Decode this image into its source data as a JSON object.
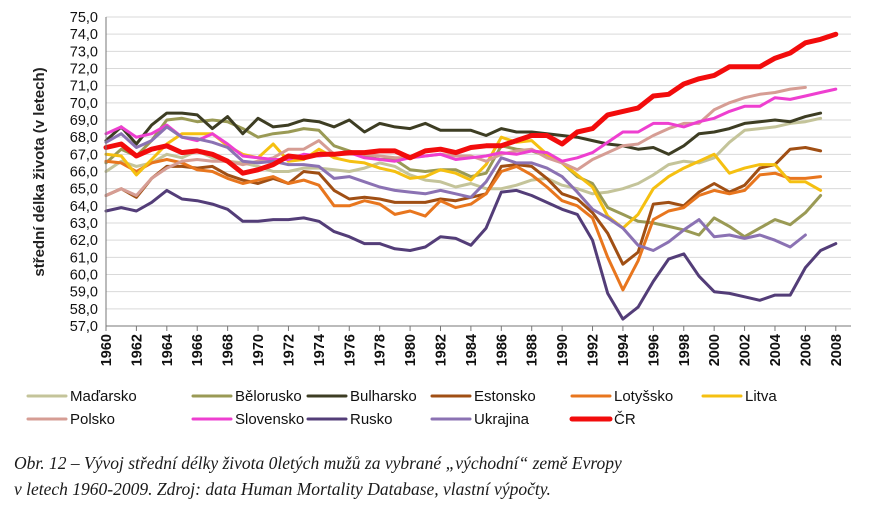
{
  "chart_data": {
    "type": "line",
    "title": "",
    "xlabel": "",
    "ylabel": "střední délka života (v letech)",
    "xlim": [
      1960,
      2009
    ],
    "ylim": [
      57.0,
      75.0
    ],
    "ytick_step": 1,
    "xticks": [
      1960,
      1962,
      1964,
      1966,
      1968,
      1970,
      1972,
      1974,
      1976,
      1978,
      1980,
      1982,
      1984,
      1986,
      1988,
      1990,
      1992,
      1994,
      1996,
      1998,
      2000,
      2002,
      2004,
      2006,
      2008
    ],
    "ytick_labels": [
      "57,0",
      "58,0",
      "59,0",
      "60,0",
      "61,0",
      "62,0",
      "63,0",
      "64,0",
      "65,0",
      "66,0",
      "67,0",
      "68,0",
      "69,0",
      "70,0",
      "71,0",
      "72,0",
      "73,0",
      "74,0",
      "75,0"
    ],
    "grid": "horizontal",
    "legend_position": "bottom",
    "series": [
      {
        "name": "Maďarsko",
        "color": "#c4c49a",
        "start": 1960,
        "values": [
          66.0,
          66.6,
          66.3,
          66.5,
          67.0,
          66.8,
          67.2,
          66.8,
          66.6,
          66.5,
          66.3,
          66.0,
          66.0,
          66.2,
          66.2,
          66.1,
          66.0,
          66.2,
          66.5,
          66.3,
          65.8,
          65.5,
          65.4,
          65.1,
          65.3,
          65.0,
          65.0,
          65.2,
          65.5,
          65.6,
          65.2,
          65.0,
          64.7,
          64.8,
          65.0,
          65.3,
          65.8,
          66.4,
          66.6,
          66.5,
          66.8,
          67.7,
          68.4,
          68.5,
          68.6,
          68.8,
          68.9,
          69.1
        ]
      },
      {
        "name": "Bělorusko",
        "color": "#9a9a55",
        "start": 1960,
        "values": [
          66.5,
          67.3,
          66.9,
          67.8,
          69.0,
          69.1,
          68.9,
          69.0,
          68.9,
          68.5,
          68.0,
          68.2,
          68.3,
          68.5,
          68.4,
          67.5,
          67.2,
          66.9,
          66.7,
          66.7,
          66.1,
          66.0,
          66.1,
          66.1,
          65.7,
          65.9,
          67.5,
          67.3,
          67.2,
          66.9,
          66.5,
          65.7,
          65.3,
          63.9,
          63.5,
          63.1,
          63.0,
          62.8,
          62.6,
          62.3,
          63.3,
          62.8,
          62.2,
          62.7,
          63.2,
          62.9,
          63.6,
          64.6
        ]
      },
      {
        "name": "Bulharsko",
        "color": "#3d3d23",
        "start": 1960,
        "values": [
          67.8,
          68.6,
          67.6,
          68.7,
          69.4,
          69.4,
          69.3,
          68.5,
          69.2,
          68.2,
          69.1,
          68.6,
          68.7,
          69.0,
          68.9,
          68.6,
          69.0,
          68.3,
          68.8,
          68.6,
          68.5,
          68.8,
          68.4,
          68.4,
          68.4,
          68.1,
          68.5,
          68.3,
          68.3,
          68.2,
          68.1,
          68.0,
          67.8,
          67.6,
          67.5,
          67.3,
          67.4,
          67.0,
          67.5,
          68.2,
          68.3,
          68.5,
          68.8,
          68.9,
          69.0,
          68.9,
          69.2,
          69.4
        ]
      },
      {
        "name": "Estonsko",
        "color": "#a04f14",
        "start": 1960,
        "values": [
          64.6,
          65.0,
          64.5,
          65.6,
          66.3,
          66.3,
          66.2,
          66.3,
          65.8,
          65.5,
          65.3,
          65.6,
          65.3,
          66.0,
          65.9,
          64.9,
          64.4,
          64.5,
          64.4,
          64.2,
          64.2,
          64.2,
          64.4,
          64.3,
          64.5,
          64.7,
          66.3,
          66.4,
          66.3,
          65.6,
          64.7,
          64.4,
          63.6,
          62.4,
          60.6,
          61.3,
          64.1,
          64.2,
          64.0,
          64.8,
          65.3,
          64.8,
          65.2,
          66.2,
          66.4,
          67.3,
          67.4,
          67.2
        ]
      },
      {
        "name": "Lotyšsko",
        "color": "#e8761e",
        "start": 1960,
        "values": [
          66.6,
          66.5,
          66.0,
          66.5,
          66.7,
          66.5,
          66.1,
          66.0,
          65.6,
          65.3,
          65.5,
          65.7,
          65.3,
          65.5,
          65.2,
          64.0,
          64.0,
          64.3,
          64.1,
          63.5,
          63.7,
          63.4,
          64.3,
          63.9,
          64.1,
          64.7,
          66.0,
          66.3,
          65.8,
          65.1,
          64.3,
          64.0,
          63.3,
          61.0,
          59.1,
          60.8,
          63.2,
          63.7,
          63.9,
          64.6,
          64.9,
          64.7,
          64.9,
          65.8,
          65.9,
          65.6,
          65.6,
          65.7
        ]
      },
      {
        "name": "Litva",
        "color": "#f5c011",
        "start": 1960,
        "values": [
          67.0,
          66.9,
          65.8,
          66.7,
          67.6,
          68.2,
          68.2,
          68.2,
          67.5,
          67.0,
          66.8,
          67.6,
          66.6,
          66.7,
          67.3,
          66.8,
          66.6,
          66.5,
          66.2,
          66.0,
          65.6,
          65.7,
          66.1,
          65.9,
          65.5,
          66.4,
          68.0,
          67.7,
          67.8,
          67.0,
          66.5,
          65.8,
          65.1,
          63.4,
          62.7,
          63.5,
          65.0,
          65.7,
          66.2,
          66.6,
          67.0,
          65.9,
          66.2,
          66.4,
          66.4,
          65.4,
          65.4,
          64.9
        ]
      },
      {
        "name": "Polsko",
        "color": "#d69d94",
        "start": 1960,
        "values": [
          64.6,
          65.0,
          64.6,
          65.6,
          66.2,
          66.6,
          66.7,
          66.6,
          66.6,
          66.4,
          66.6,
          66.8,
          67.3,
          67.3,
          67.8,
          67.0,
          67.0,
          67.0,
          66.9,
          66.8,
          66.8,
          66.9,
          67.0,
          66.9,
          66.9,
          66.6,
          67.0,
          67.2,
          67.3,
          66.8,
          66.5,
          66.1,
          66.7,
          67.1,
          67.5,
          67.6,
          68.1,
          68.5,
          68.8,
          68.8,
          69.6,
          70.0,
          70.3,
          70.5,
          70.6,
          70.8,
          70.9
        ]
      },
      {
        "name": "Slovensko",
        "color": "#ee3fd0",
        "start": 1960,
        "values": [
          68.2,
          68.6,
          68.0,
          68.2,
          68.7,
          68.0,
          67.8,
          68.2,
          67.6,
          66.9,
          66.8,
          66.7,
          66.7,
          67.0,
          66.9,
          67.0,
          67.1,
          66.8,
          66.7,
          66.6,
          66.8,
          66.9,
          67.0,
          66.7,
          66.8,
          66.9,
          67.1,
          67.0,
          67.2,
          67.1,
          66.6,
          66.8,
          67.1,
          67.7,
          68.3,
          68.3,
          68.8,
          68.8,
          68.6,
          68.9,
          69.1,
          69.5,
          69.8,
          69.8,
          70.3,
          70.2,
          70.4,
          70.6,
          70.8
        ]
      },
      {
        "name": "Rusko",
        "color": "#533d78",
        "start": 1960,
        "values": [
          63.7,
          63.9,
          63.7,
          64.2,
          64.9,
          64.4,
          64.3,
          64.1,
          63.8,
          63.1,
          63.1,
          63.2,
          63.2,
          63.3,
          63.1,
          62.5,
          62.2,
          61.8,
          61.8,
          61.5,
          61.4,
          61.6,
          62.2,
          62.1,
          61.7,
          62.7,
          64.8,
          64.9,
          64.6,
          64.2,
          63.8,
          63.5,
          62.0,
          58.9,
          57.4,
          58.1,
          59.6,
          60.9,
          61.2,
          59.9,
          59.0,
          58.9,
          58.7,
          58.5,
          58.8,
          58.8,
          60.4,
          61.4,
          61.8
        ]
      },
      {
        "name": "Ukrajina",
        "color": "#8b72b3",
        "start": 1960,
        "values": [
          67.7,
          68.2,
          67.4,
          67.8,
          68.6,
          68.0,
          67.9,
          67.7,
          67.4,
          66.6,
          66.5,
          66.6,
          66.4,
          66.4,
          66.3,
          65.6,
          65.7,
          65.4,
          65.1,
          64.9,
          64.8,
          64.7,
          64.9,
          64.7,
          64.5,
          65.4,
          66.8,
          66.5,
          66.5,
          66.2,
          65.7,
          64.8,
          63.8,
          63.3,
          62.7,
          61.7,
          61.4,
          61.9,
          62.6,
          63.2,
          62.2,
          62.3,
          62.1,
          62.3,
          62.0,
          61.6,
          62.3
        ]
      },
      {
        "name": "ČR",
        "color": "#f20c0c",
        "start": 1960,
        "values": [
          67.4,
          67.6,
          66.9,
          67.3,
          67.5,
          67.1,
          67.2,
          67.0,
          66.6,
          65.9,
          66.1,
          66.4,
          66.9,
          66.8,
          67.0,
          67.0,
          67.1,
          67.1,
          67.2,
          67.2,
          66.8,
          67.2,
          67.3,
          67.1,
          67.4,
          67.5,
          67.5,
          67.8,
          68.1,
          68.1,
          67.6,
          68.3,
          68.5,
          69.3,
          69.5,
          69.7,
          70.4,
          70.5,
          71.1,
          71.4,
          71.6,
          72.1,
          72.1,
          72.1,
          72.6,
          72.9,
          73.5,
          73.7,
          74.0
        ]
      }
    ]
  },
  "caption": {
    "line1": "Obr. 12 – Vývoj střední délky života 0letých mužů za vybrané „východní“ země Evropy",
    "line2": "v letech 1960-2009. Zdroj: data Human Mortality Database, vlastní výpočty."
  }
}
